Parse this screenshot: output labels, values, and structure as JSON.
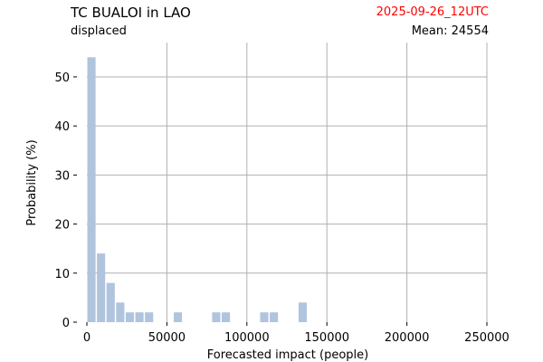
{
  "header": {
    "title": "TC BUALOI in LAO",
    "subtitle": "displaced",
    "date": "2025-09-26_12UTC",
    "mean_label": "Mean: 24554",
    "date_color": "#ff0000"
  },
  "chart_data": {
    "type": "bar",
    "xlabel": "Forecasted impact (people)",
    "ylabel": "Probability (%)",
    "xlim": [
      0,
      250000
    ],
    "ylim": [
      0,
      57
    ],
    "x_ticks": [
      0,
      50000,
      100000,
      150000,
      200000,
      250000
    ],
    "x_tick_labels": [
      "0",
      "50000",
      "100000",
      "150000",
      "200000",
      "250000"
    ],
    "y_ticks": [
      0,
      10,
      20,
      30,
      40,
      50
    ],
    "y_tick_labels": [
      "0",
      "10",
      "20",
      "30",
      "40",
      "50"
    ],
    "grid": true,
    "bar_color": "#b0c4de",
    "bin_width": 6000,
    "bars": [
      {
        "x": 0,
        "value": 54
      },
      {
        "x": 6000,
        "value": 14
      },
      {
        "x": 12000,
        "value": 8
      },
      {
        "x": 18000,
        "value": 4
      },
      {
        "x": 24000,
        "value": 2
      },
      {
        "x": 30000,
        "value": 2
      },
      {
        "x": 36000,
        "value": 2
      },
      {
        "x": 54000,
        "value": 2
      },
      {
        "x": 78000,
        "value": 2
      },
      {
        "x": 84000,
        "value": 2
      },
      {
        "x": 108000,
        "value": 2
      },
      {
        "x": 114000,
        "value": 2
      },
      {
        "x": 132000,
        "value": 4
      }
    ]
  }
}
